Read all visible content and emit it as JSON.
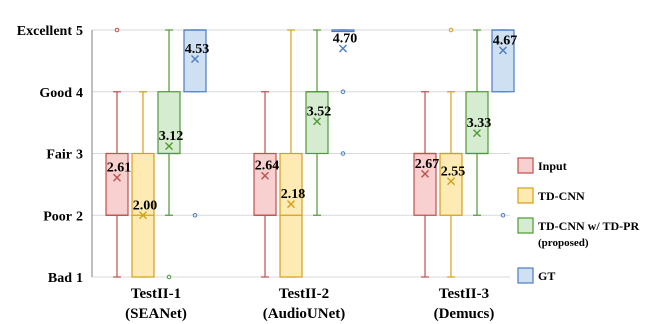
{
  "chart_data": {
    "type": "box",
    "title": "",
    "xlabel": "",
    "ylabel": "",
    "ylim": [
      1,
      5
    ],
    "grid": "horizontal",
    "legend_placement": "right",
    "y_ticks": [
      {
        "value": 1,
        "label": "Bad",
        "num": "1"
      },
      {
        "value": 2,
        "label": "Poor",
        "num": "2"
      },
      {
        "value": 3,
        "label": "Fair",
        "num": "3"
      },
      {
        "value": 4,
        "label": "Good",
        "num": "4"
      },
      {
        "value": 5,
        "label": "Excellent",
        "num": "5"
      }
    ],
    "groups": [
      {
        "line1": "TestII-1",
        "line2": "(SEANet)"
      },
      {
        "line1": "TestII-2",
        "line2": "(AudioUNet)"
      },
      {
        "line1": "TestII-3",
        "line2": "(Demucs)"
      }
    ],
    "series": [
      {
        "name": "Input",
        "name_line2": "",
        "edge": "#c0504d",
        "fill": "#f7d0cf",
        "boxes": [
          {
            "group": 0,
            "min": 1,
            "q1": 2,
            "median": 2,
            "q3": 3,
            "max": 4,
            "mean": 2.61,
            "mean_label": "2.61",
            "outliers": [
              5
            ]
          },
          {
            "group": 1,
            "min": 1,
            "q1": 2,
            "median": 2,
            "q3": 3,
            "max": 4,
            "mean": 2.64,
            "mean_label": "2.64",
            "outliers": []
          },
          {
            "group": 2,
            "min": 1,
            "q1": 2,
            "median": 3,
            "q3": 3,
            "max": 4,
            "mean": 2.67,
            "mean_label": "2.67",
            "outliers": []
          }
        ]
      },
      {
        "name": "TD-CNN",
        "name_line2": "",
        "edge": "#d4a017",
        "fill": "#fdebb3",
        "boxes": [
          {
            "group": 0,
            "min": 1,
            "q1": 1,
            "median": 2,
            "q3": 3,
            "max": 4,
            "mean": 2.0,
            "mean_label": "2.00",
            "outliers": []
          },
          {
            "group": 1,
            "min": 1,
            "q1": 1,
            "median": 2,
            "q3": 3,
            "max": 5,
            "mean": 2.18,
            "mean_label": "2.18",
            "outliers": []
          },
          {
            "group": 2,
            "min": 1,
            "q1": 2,
            "median": 3,
            "q3": 3,
            "max": 4,
            "mean": 2.55,
            "mean_label": "2.55",
            "outliers": [
              5
            ]
          }
        ]
      },
      {
        "name": "TD-CNN w/ TD-PR",
        "name_line2": "(proposed)",
        "edge": "#4e9a35",
        "fill": "#d6ecd0",
        "boxes": [
          {
            "group": 0,
            "min": 2,
            "q1": 3,
            "median": 3,
            "q3": 4,
            "max": 5,
            "mean": 3.12,
            "mean_label": "3.12",
            "outliers": [
              1
            ]
          },
          {
            "group": 1,
            "min": 2,
            "q1": 3,
            "median": 4,
            "q3": 4,
            "max": 5,
            "mean": 3.52,
            "mean_label": "3.52",
            "outliers": []
          },
          {
            "group": 2,
            "min": 2,
            "q1": 3,
            "median": 3,
            "q3": 4,
            "max": 5,
            "mean": 3.33,
            "mean_label": "3.33",
            "outliers": []
          }
        ]
      },
      {
        "name": "GT",
        "name_line2": "",
        "edge": "#4a7cc0",
        "fill": "#cfe0f3",
        "boxes": [
          {
            "group": 0,
            "min": 4,
            "q1": 4,
            "median": 5,
            "q3": 5,
            "max": 5,
            "mean": 4.53,
            "mean_label": "4.53",
            "outliers": [
              2
            ]
          },
          {
            "group": 1,
            "min": 5,
            "q1": 5,
            "median": 5,
            "q3": 5,
            "max": 5,
            "mean": 4.7,
            "mean_label": "4.70",
            "outliers": [
              4,
              3
            ]
          },
          {
            "group": 2,
            "min": 4,
            "q1": 4,
            "median": 5,
            "q3": 5,
            "max": 5,
            "mean": 4.67,
            "mean_label": "4.67",
            "outliers": [
              2
            ]
          }
        ]
      }
    ]
  }
}
